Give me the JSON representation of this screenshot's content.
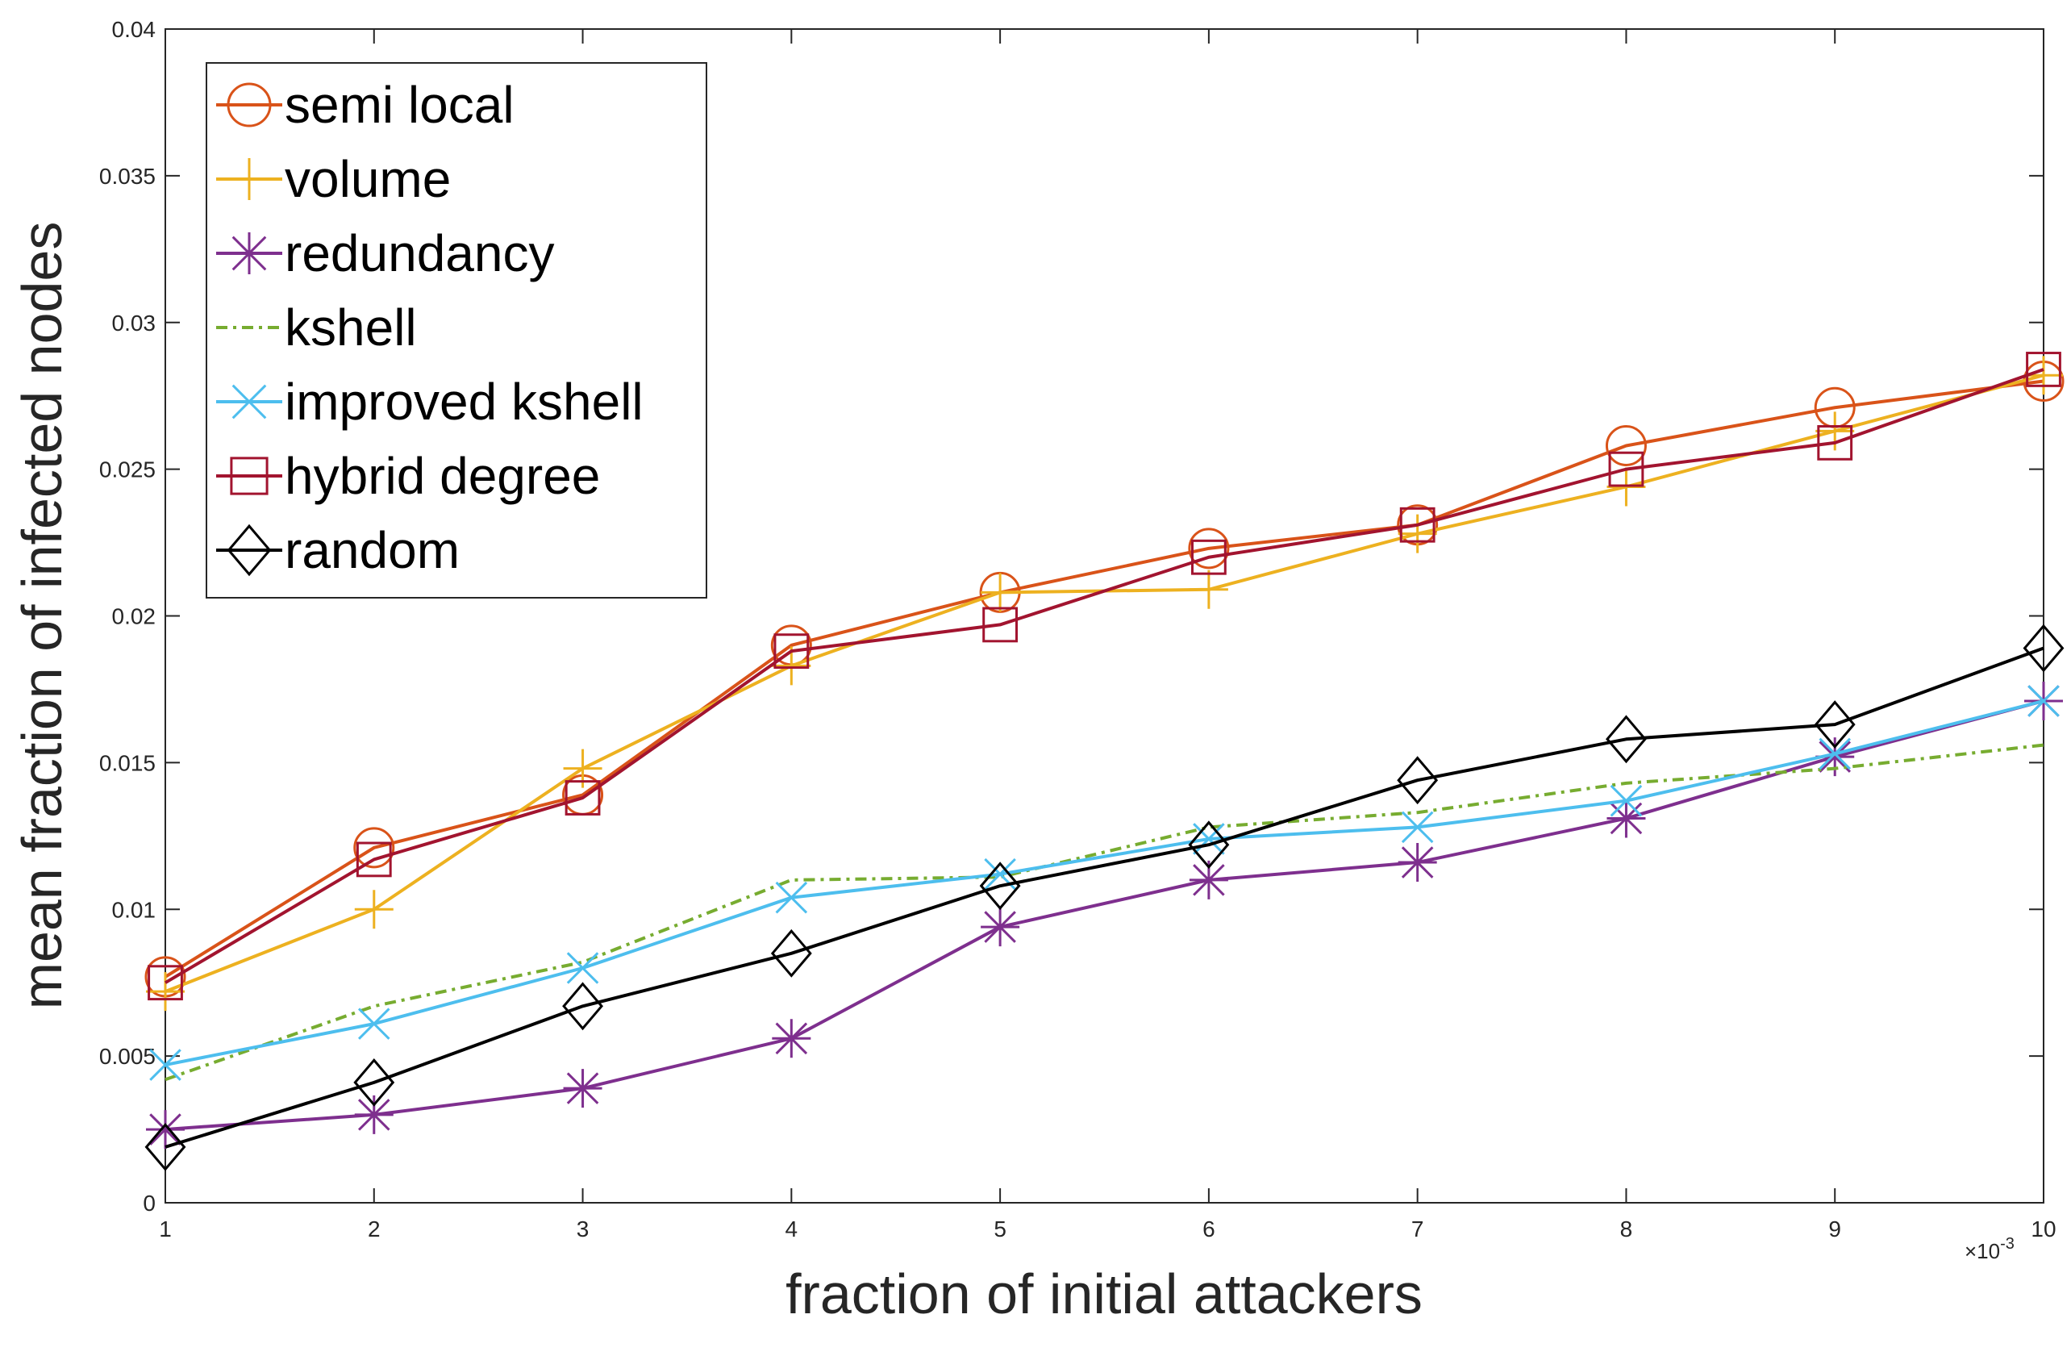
{
  "chart_data": {
    "type": "line",
    "title": "",
    "xlabel": "fraction of initial attackers",
    "ylabel": "mean fraction of infected nodes",
    "x_exponent_label": "×10",
    "x_exponent_power": "-3",
    "x": [
      1,
      2,
      3,
      4,
      5,
      6,
      7,
      8,
      9,
      10
    ],
    "xlim": [
      1,
      10
    ],
    "ylim": [
      0,
      0.04
    ],
    "x_ticks": [
      "1",
      "2",
      "3",
      "4",
      "5",
      "6",
      "7",
      "8",
      "9",
      "10"
    ],
    "y_ticks": [
      "0",
      "0.005",
      "0.01",
      "0.015",
      "0.02",
      "0.025",
      "0.03",
      "0.035",
      "0.04"
    ],
    "grid": false,
    "legend_position": "top-left",
    "series": [
      {
        "name": "semi local",
        "color": "#D95319",
        "marker": "circle",
        "dash": "solid",
        "values": [
          0.0077,
          0.0121,
          0.0139,
          0.019,
          0.0208,
          0.0223,
          0.0231,
          0.0258,
          0.0271,
          0.028
        ]
      },
      {
        "name": "volume",
        "color": "#EDB120",
        "marker": "plus",
        "dash": "solid",
        "values": [
          0.0072,
          0.01,
          0.0148,
          0.0183,
          0.0208,
          0.0209,
          0.0228,
          0.0244,
          0.0263,
          0.0282
        ]
      },
      {
        "name": "redundancy",
        "color": "#7E2F8E",
        "marker": "asterisk",
        "dash": "solid",
        "values": [
          0.0025,
          0.003,
          0.0039,
          0.0056,
          0.0094,
          0.011,
          0.0116,
          0.0131,
          0.0152,
          0.0171
        ]
      },
      {
        "name": "kshell",
        "color": "#77AC30",
        "marker": "none",
        "dash": "dashdot",
        "values": [
          0.0042,
          0.0067,
          0.0082,
          0.011,
          0.0111,
          0.0128,
          0.0133,
          0.0143,
          0.0148,
          0.0156
        ]
      },
      {
        "name": "improved kshell",
        "color": "#4DBEEE",
        "marker": "cross",
        "dash": "solid",
        "values": [
          0.0047,
          0.0061,
          0.008,
          0.0104,
          0.0112,
          0.0124,
          0.0128,
          0.0137,
          0.0153,
          0.0171
        ]
      },
      {
        "name": "hybrid degree",
        "color": "#A2142F",
        "marker": "square",
        "dash": "solid",
        "values": [
          0.0075,
          0.0117,
          0.0138,
          0.0188,
          0.0197,
          0.022,
          0.0231,
          0.025,
          0.0259,
          0.0284
        ]
      },
      {
        "name": "random",
        "color": "#000000",
        "marker": "diamond",
        "dash": "solid",
        "values": [
          0.0019,
          0.0041,
          0.0067,
          0.0085,
          0.0108,
          0.0122,
          0.0144,
          0.0158,
          0.0163,
          0.0189
        ]
      }
    ]
  }
}
